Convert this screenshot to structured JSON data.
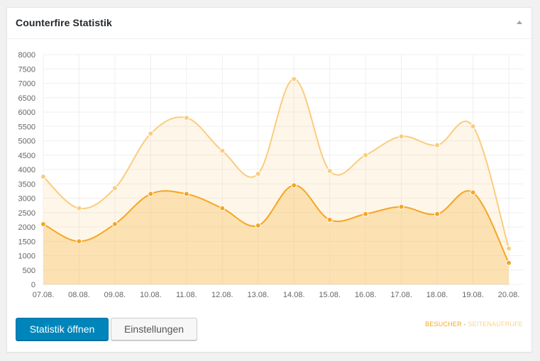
{
  "widget": {
    "title": "Counterfire Statistik"
  },
  "buttons": {
    "open_label": "Statistik öffnen",
    "settings_label": "Einstellungen"
  },
  "legend": {
    "series1": "BESUCHER",
    "separator": "-",
    "series2": "SEITENAUFRUFE"
  },
  "colors": {
    "besucher": "#f5a623",
    "seitenaufrufe": "#fbcc7e",
    "primary_button": "#0085ba"
  },
  "chart_data": {
    "type": "area",
    "categories": [
      "07.08.",
      "08.08.",
      "09.08.",
      "10.08.",
      "11.08.",
      "12.08.",
      "13.08.",
      "14.08.",
      "15.08.",
      "16.08.",
      "17.08.",
      "18.08.",
      "19.08.",
      "20.08."
    ],
    "series": [
      {
        "name": "SEITENAUFRUFE",
        "values": [
          3750,
          2650,
          3350,
          5250,
          5800,
          4650,
          3850,
          7150,
          3950,
          4500,
          5150,
          4850,
          5500,
          1250
        ]
      },
      {
        "name": "BESUCHER",
        "values": [
          2100,
          1500,
          2100,
          3150,
          3150,
          2650,
          2050,
          3450,
          2250,
          2450,
          2700,
          2450,
          3200,
          750
        ]
      }
    ],
    "yticks": [
      0,
      500,
      1000,
      1500,
      2000,
      2500,
      3000,
      3500,
      4000,
      4500,
      5000,
      5500,
      6000,
      6500,
      7000,
      7500,
      8000
    ],
    "ylim": [
      0,
      8000
    ],
    "grid": true,
    "legend_position": "bottom-right"
  }
}
